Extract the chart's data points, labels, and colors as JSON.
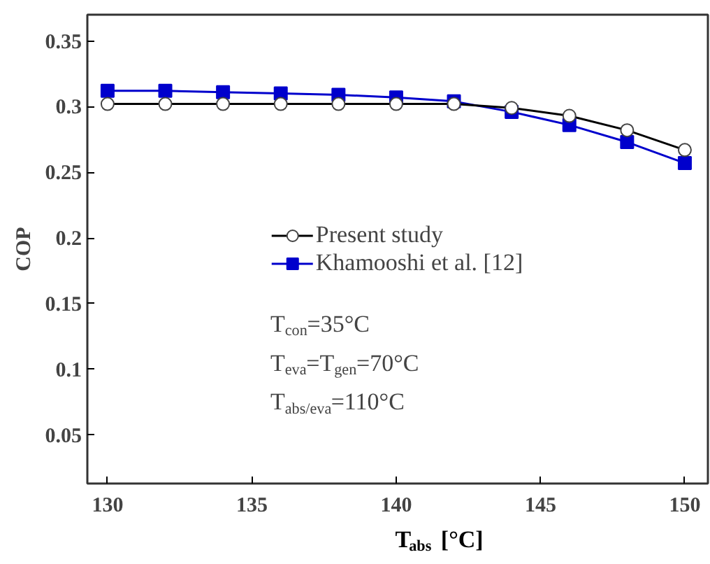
{
  "chart_data": {
    "type": "line",
    "xlabel": "T$_{abs}$  [°C]",
    "ylabel": "COP",
    "x": [
      130,
      132,
      134,
      136,
      138,
      140,
      142,
      144,
      146,
      148,
      150
    ],
    "series": [
      {
        "name": "Present study",
        "color": "#000000",
        "marker": "circle",
        "values": [
          0.302,
          0.302,
          0.302,
          0.302,
          0.302,
          0.302,
          0.302,
          0.299,
          0.293,
          0.282,
          0.267
        ]
      },
      {
        "name": "Khamooshi et al. [12]",
        "color": "#0000cc",
        "marker": "square",
        "values": [
          0.312,
          0.312,
          0.311,
          0.31,
          0.309,
          0.307,
          0.304,
          0.296,
          0.286,
          0.273,
          0.257
        ]
      }
    ],
    "xlim": [
      129.3,
      150.8
    ],
    "ylim": [
      0.013,
      0.37
    ],
    "xticks": [
      130,
      135,
      140,
      145,
      150
    ],
    "yticks": [
      0.05,
      0.1,
      0.15,
      0.2,
      0.25,
      0.3,
      0.35
    ],
    "grid": false,
    "legend": "center",
    "annotations": [
      "T$_{con}$=35°C",
      "T$_{eva}$=T$_{gen}$=70°C",
      "T$_{abs/eva}$=110°C"
    ]
  }
}
